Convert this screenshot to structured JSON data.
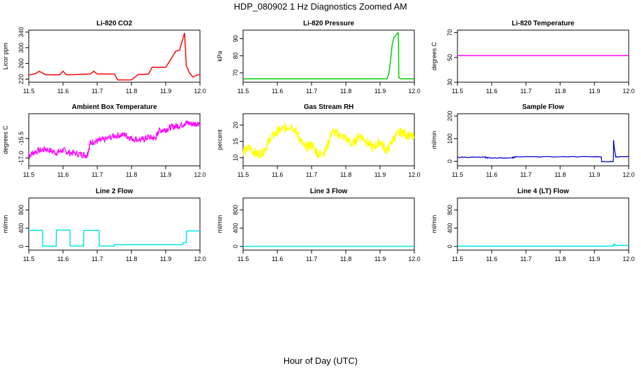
{
  "figure": {
    "title": "HDP_080902  1 Hz Diagnostics Zoomed AM",
    "xlabel": "Hour of Day (UTC)"
  },
  "chart_data": [
    {
      "type": "line",
      "title": "Li-820 CO2",
      "ylabel": "Licor ppm",
      "xlim": [
        11.5,
        12.0
      ],
      "ylim": [
        212,
        345
      ],
      "xticks": [
        "11.5",
        "11.6",
        "11.7",
        "11.8",
        "11.9",
        "12.0"
      ],
      "yticks": [
        "220",
        "260",
        "300",
        "340"
      ],
      "color": "#ff0000",
      "series": [
        {
          "x": [
            11.5,
            11.52,
            11.53,
            11.55,
            11.59,
            11.6,
            11.61,
            11.68,
            11.69,
            11.7,
            11.75,
            11.76,
            11.79,
            11.8,
            11.82,
            11.83,
            11.85,
            11.86,
            11.89,
            11.9,
            11.93,
            11.94,
            11.95,
            11.955,
            11.96,
            11.97,
            11.98,
            11.99,
            12.0
          ],
          "y": [
            230,
            234,
            240,
            231,
            231,
            240,
            231,
            233,
            240,
            233,
            233,
            218,
            218,
            218,
            232,
            232,
            233,
            250,
            250,
            250,
            292,
            293,
            322,
            338,
            254,
            235,
            225,
            230,
            232
          ]
        }
      ]
    },
    {
      "type": "line",
      "title": "Li-820 Pressure",
      "ylabel": "kPa",
      "xlim": [
        11.5,
        12.0
      ],
      "ylim": [
        64.5,
        95
      ],
      "xticks": [
        "11.5",
        "11.6",
        "11.7",
        "11.8",
        "11.9",
        "12.0"
      ],
      "yticks": [
        "70",
        "80",
        "90"
      ],
      "color": "#00cc00",
      "series": [
        {
          "x": [
            11.5,
            11.92,
            11.925,
            11.93,
            11.935,
            11.94,
            11.95,
            11.953,
            11.955,
            11.957,
            11.96,
            11.97,
            12.0
          ],
          "y": [
            66.5,
            66.5,
            69,
            76,
            86,
            90.5,
            93,
            93.5,
            67,
            67,
            66.5,
            66.5,
            66.5
          ]
        }
      ]
    },
    {
      "type": "line",
      "title": "Li-820 Temperature",
      "ylabel": "degrees C",
      "xlim": [
        11.5,
        12.0
      ],
      "ylim": [
        30,
        72
      ],
      "xticks": [
        "11.5",
        "11.6",
        "11.7",
        "11.8",
        "11.9",
        "12.0"
      ],
      "yticks": [
        "30",
        "50",
        "70"
      ],
      "color": "#ff00ff",
      "series": [
        {
          "x": [
            11.5,
            12.0
          ],
          "y": [
            51.5,
            51.5
          ]
        }
      ]
    },
    {
      "type": "line",
      "title": "Ambient Box Temperature",
      "ylabel": "degrees C",
      "xlim": [
        11.5,
        12.0
      ],
      "ylim": [
        -17.6,
        -13.6
      ],
      "xticks": [
        "11.5",
        "11.6",
        "11.7",
        "11.8",
        "11.9",
        "12.0"
      ],
      "yticks": [
        "-17.0",
        "-15.5"
      ],
      "color": "#ff00ff",
      "series": [
        {
          "x": [
            11.5,
            11.52,
            11.55,
            11.58,
            11.6,
            11.62,
            11.65,
            11.67,
            11.68,
            11.7,
            11.72,
            11.75,
            11.78,
            11.8,
            11.83,
            11.85,
            11.87,
            11.88,
            11.9,
            11.92,
            11.94,
            11.96,
            11.98,
            12.0
          ],
          "y": [
            -16.8,
            -16.5,
            -16.3,
            -16.6,
            -16.4,
            -16.6,
            -16.7,
            -16.8,
            -15.8,
            -15.7,
            -15.6,
            -15.3,
            -15.2,
            -15.5,
            -15.6,
            -15.4,
            -15.5,
            -14.9,
            -14.8,
            -14.6,
            -14.5,
            -14.3,
            -14.4,
            -14.3
          ],
          "noise": 0.5
        }
      ]
    },
    {
      "type": "line",
      "title": "Gas Stream RH",
      "ylabel": "percent",
      "xlim": [
        11.5,
        12.0
      ],
      "ylim": [
        7.5,
        23.5
      ],
      "xticks": [
        "11.5",
        "11.6",
        "11.7",
        "11.8",
        "11.9",
        "12.0"
      ],
      "yticks": [
        "10",
        "15",
        "20"
      ],
      "color": "#ffff00",
      "series": [
        {
          "x": [
            11.5,
            11.52,
            11.54,
            11.56,
            11.58,
            11.6,
            11.62,
            11.64,
            11.66,
            11.68,
            11.7,
            11.72,
            11.74,
            11.76,
            11.78,
            11.8,
            11.82,
            11.84,
            11.86,
            11.88,
            11.9,
            11.92,
            11.94,
            11.96,
            11.98,
            12.0
          ],
          "y": [
            12,
            13,
            11,
            12,
            16,
            18,
            19,
            20,
            17,
            13,
            14,
            11,
            12,
            18,
            17,
            16,
            14,
            17,
            15,
            13,
            15,
            12,
            16,
            18,
            17,
            16
          ],
          "noise": 3
        }
      ]
    },
    {
      "type": "line",
      "title": "Sample Flow",
      "ylabel": "ml/min",
      "xlim": [
        11.5,
        12.0
      ],
      "ylim": [
        -20,
        210
      ],
      "xticks": [
        "11.5",
        "11.6",
        "11.7",
        "11.8",
        "11.9",
        "12.0"
      ],
      "yticks": [
        "0",
        "100",
        "200"
      ],
      "color": "#0000cc",
      "series": [
        {
          "x": [
            11.5,
            11.58,
            11.59,
            11.66,
            11.67,
            11.92,
            11.921,
            11.955,
            11.956,
            11.958,
            11.962,
            11.963,
            12.0
          ],
          "y": [
            18,
            18,
            15,
            15,
            20,
            20,
            -1,
            -1,
            95,
            60,
            20,
            20,
            20
          ],
          "noise": 3
        }
      ]
    },
    {
      "type": "line",
      "title": "Line 2 Flow",
      "ylabel": "ml/min",
      "xlim": [
        11.5,
        12.0
      ],
      "ylim": [
        -80,
        1060
      ],
      "xticks": [
        "11.5",
        "11.6",
        "11.7",
        "11.8",
        "11.9",
        "12.0"
      ],
      "yticks": [
        "0",
        "400",
        "800"
      ],
      "color": "#00e5ee",
      "series": [
        {
          "x": [
            11.5,
            11.54,
            11.541,
            11.58,
            11.581,
            11.62,
            11.621,
            11.66,
            11.661,
            11.705,
            11.706,
            11.75,
            11.751,
            11.95,
            11.951,
            11.96,
            11.961,
            12.0
          ],
          "y": [
            350,
            350,
            5,
            5,
            360,
            360,
            10,
            10,
            350,
            350,
            10,
            10,
            40,
            40,
            80,
            80,
            340,
            340
          ]
        }
      ]
    },
    {
      "type": "line",
      "title": "Line 3 Flow",
      "ylabel": "ml/min",
      "xlim": [
        11.5,
        12.0
      ],
      "ylim": [
        -80,
        1060
      ],
      "xticks": [
        "11.5",
        "11.6",
        "11.7",
        "11.8",
        "11.9",
        "12.0"
      ],
      "yticks": [
        "0",
        "400",
        "800"
      ],
      "color": "#00e5ee",
      "series": [
        {
          "x": [
            11.5,
            12.0
          ],
          "y": [
            2,
            2
          ]
        }
      ]
    },
    {
      "type": "line",
      "title": "Line 4 (LT) Flow",
      "ylabel": "ml/min",
      "xlim": [
        11.5,
        12.0
      ],
      "ylim": [
        -80,
        1060
      ],
      "xticks": [
        "11.5",
        "11.6",
        "11.7",
        "11.8",
        "11.9",
        "12.0"
      ],
      "yticks": [
        "0",
        "400",
        "800"
      ],
      "color": "#00e5ee",
      "series": [
        {
          "x": [
            11.5,
            11.955,
            11.956,
            11.958,
            11.96,
            11.965,
            12.0
          ],
          "y": [
            5,
            5,
            60,
            20,
            40,
            20,
            20
          ]
        }
      ]
    }
  ]
}
